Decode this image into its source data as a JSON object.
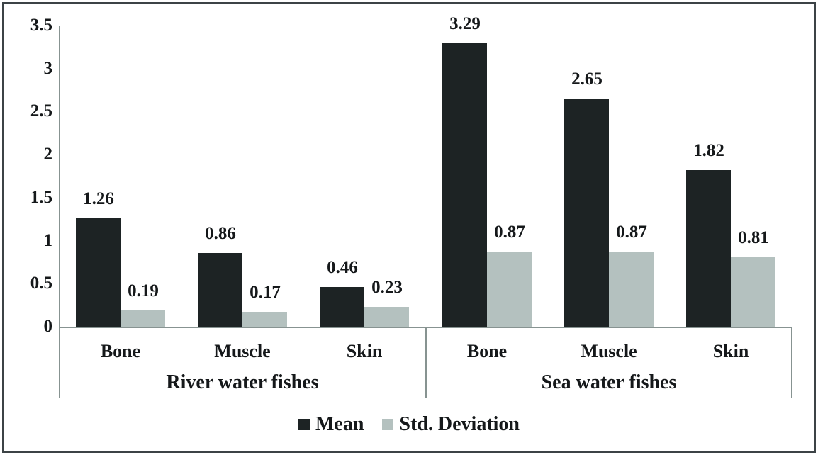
{
  "chart_data": {
    "type": "bar",
    "title": "",
    "xlabel": "",
    "ylabel": "",
    "ylim": [
      0,
      3.5
    ],
    "grid": false,
    "legend_position": "bottom",
    "value_labels": true,
    "value_label_decimals": 2,
    "y_ticks": [
      0,
      0.5,
      1,
      1.5,
      2,
      2.5,
      3,
      3.5
    ],
    "groups": [
      {
        "label": "River water fishes",
        "categories": [
          "Bone",
          "Muscle",
          "Skin"
        ]
      },
      {
        "label": "Sea water fishes",
        "categories": [
          "Bone",
          "Muscle",
          "Skin"
        ]
      }
    ],
    "series": [
      {
        "name": "Mean",
        "color": "#1d2324",
        "values": [
          [
            1.26,
            0.86,
            0.46
          ],
          [
            3.29,
            2.65,
            1.82
          ]
        ]
      },
      {
        "name": "Std. Deviation",
        "color": "#b4c1bf",
        "values": [
          [
            0.19,
            0.17,
            0.23
          ],
          [
            0.87,
            0.87,
            0.81
          ]
        ]
      }
    ]
  },
  "colors": {
    "axis_line": "#879391",
    "text": "#15181a",
    "background": "#ffffff",
    "border": "#3c4346"
  }
}
